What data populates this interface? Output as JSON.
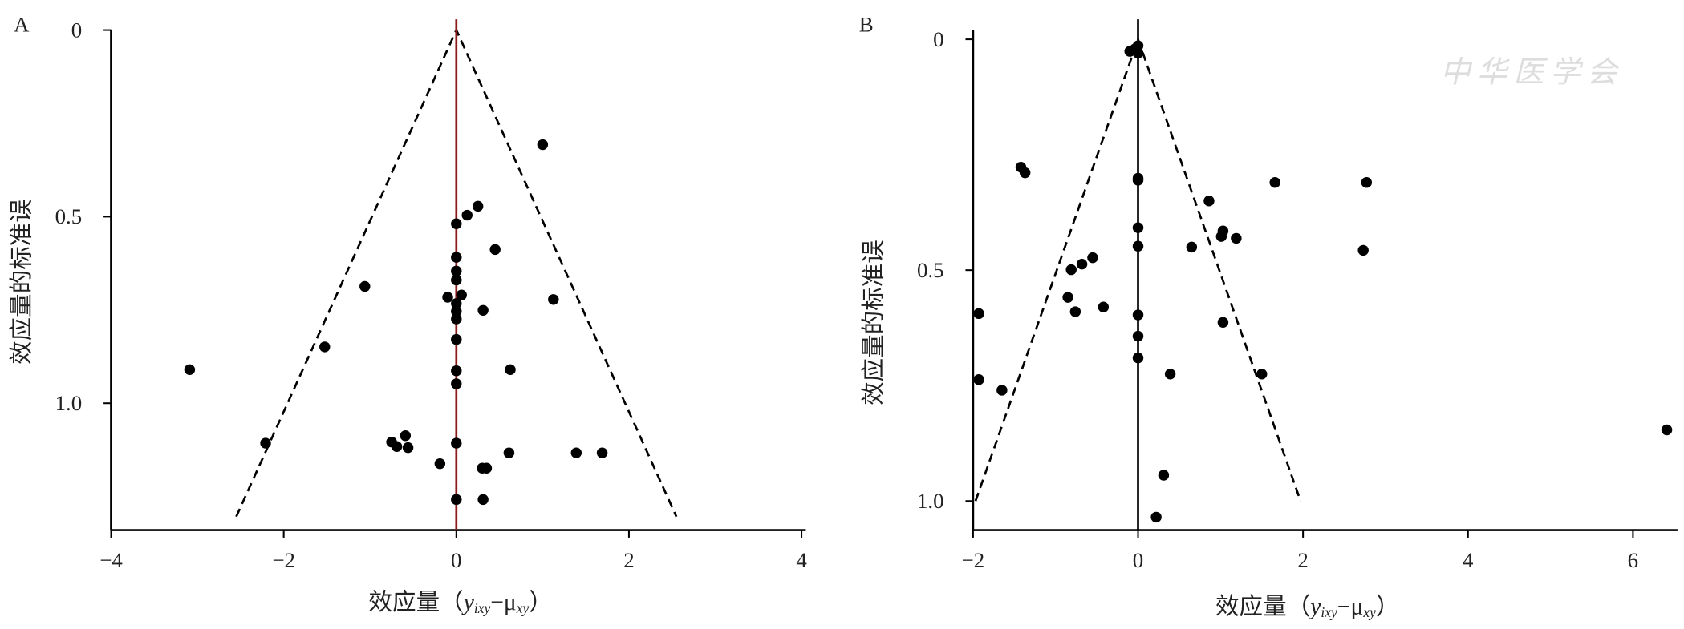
{
  "chart_data": [
    {
      "type": "scatter",
      "panel": "A",
      "xlabel": [
        "效应量（",
        "y",
        "ixy",
        "−μ",
        "xy",
        "）"
      ],
      "ylabel": "效应量的标准误",
      "xlim": [
        -4,
        4.05
      ],
      "ylim": [
        0,
        1.34
      ],
      "y_inverted": true,
      "xticks": [
        {
          "value": -4,
          "label": "−4"
        },
        {
          "value": -2,
          "label": "−2"
        },
        0,
        2,
        4
      ],
      "yticks": [
        0,
        0.5,
        {
          "value": 1,
          "label": "1.0"
        }
      ],
      "color": "#000000",
      "reference_line": {
        "x": 0,
        "color": "#8b1a1a"
      },
      "funnel": {
        "x": [
          -2.55,
          0,
          2.55
        ],
        "y": [
          1.304,
          0,
          1.304
        ]
      },
      "x": [
        1.0,
        0.25,
        0.125,
        0,
        0.45,
        0,
        0,
        0,
        -1.06,
        -0.1,
        0.06,
        0,
        0.31,
        0,
        0,
        1.125,
        -1.525,
        0,
        -3.09,
        0,
        0.625,
        0,
        -2.21,
        -0.59,
        -0.75,
        -0.69,
        -0.56,
        0,
        -0.19,
        0.3,
        0.35,
        0.61,
        1.39,
        1.69,
        0,
        0.31
      ],
      "y": [
        0.307,
        0.472,
        0.496,
        0.519,
        0.588,
        0.609,
        0.646,
        0.67,
        0.687,
        0.716,
        0.71,
        0.733,
        0.751,
        0.754,
        0.774,
        0.722,
        0.849,
        0.829,
        0.91,
        0.913,
        0.91,
        0.948,
        1.107,
        1.087,
        1.104,
        1.116,
        1.119,
        1.107,
        1.162,
        1.174,
        1.174,
        1.133,
        1.133,
        1.133,
        1.258,
        1.258
      ]
    },
    {
      "type": "scatter",
      "panel": "B",
      "xlabel": [
        "效应量（",
        "y",
        "ixy",
        "−μ",
        "xy",
        "）"
      ],
      "ylabel": "效应量的标准误",
      "watermark": "中华医学会",
      "xlim": [
        -2,
        6.54
      ],
      "ylim": [
        -0.02,
        1.063
      ],
      "y_inverted": true,
      "xticks": [
        {
          "value": -2,
          "label": "−2"
        },
        0,
        2,
        4,
        6
      ],
      "yticks": [
        0,
        0.5,
        {
          "value": 1,
          "label": "1.0"
        }
      ],
      "color": "#000000",
      "reference_line": {
        "x": 0,
        "color": "#000000"
      },
      "funnel": {
        "x": [
          -1.97,
          0,
          1.97
        ],
        "y": [
          1.0,
          0,
          1.0
        ]
      },
      "x": [
        -0.1,
        -0.04,
        0,
        0,
        -1.42,
        -1.37,
        0,
        0,
        1.66,
        2.77,
        0.86,
        0,
        1.03,
        1.01,
        1.19,
        0.65,
        0,
        2.73,
        -0.55,
        -0.68,
        -0.81,
        -1.93,
        -0.85,
        -0.76,
        -0.42,
        0,
        1.03,
        0,
        0,
        -1.93,
        -1.65,
        0.39,
        1.5,
        6.41,
        0.31,
        0.22
      ],
      "y": [
        0.026,
        0.021,
        0.014,
        0.03,
        0.277,
        0.289,
        0.301,
        0.305,
        0.31,
        0.31,
        0.35,
        0.408,
        0.415,
        0.427,
        0.431,
        0.45,
        0.448,
        0.457,
        0.473,
        0.487,
        0.499,
        0.594,
        0.559,
        0.59,
        0.58,
        0.597,
        0.613,
        0.643,
        0.69,
        0.737,
        0.76,
        0.725,
        0.725,
        0.846,
        0.944,
        1.035
      ]
    }
  ]
}
